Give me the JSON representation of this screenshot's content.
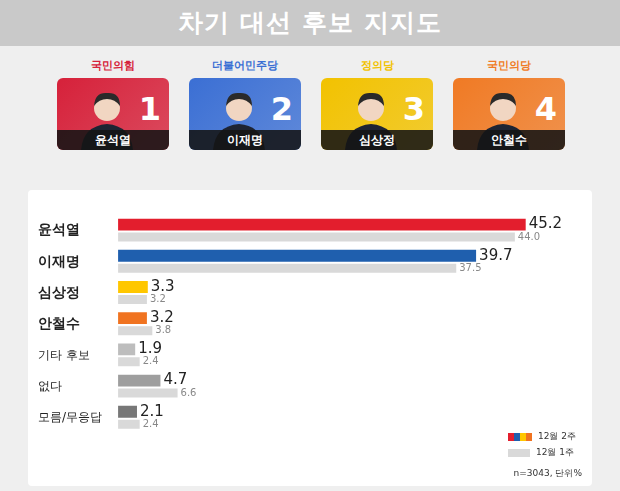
{
  "header": {
    "title": "차기 대선 후보 지지도",
    "candidates": [
      {
        "number": 1,
        "name": "윤석열",
        "party": "국민의힘",
        "color": "#d6213a"
      },
      {
        "number": 2,
        "name": "이재명",
        "party": "더불어민주당",
        "color": "#3b6fd4"
      },
      {
        "number": 3,
        "name": "심상정",
        "party": "정의당",
        "color": "#f2c200"
      },
      {
        "number": 4,
        "name": "안철수",
        "party": "국민의당",
        "color": "#f07a24"
      }
    ]
  },
  "chart_data": {
    "type": "bar",
    "orientation": "horizontal",
    "title": "차기 대선 후보 지지도",
    "categories": [
      "윤석열",
      "이재명",
      "심상정",
      "안철수",
      "기타 후보",
      "없다",
      "모름/무응답"
    ],
    "series": [
      {
        "name": "12월 2주",
        "colors": [
          "#e31e2d",
          "#1f5fae",
          "#ffc700",
          "#f07320",
          "#bdbdbd",
          "#9e9e9e",
          "#777777"
        ],
        "values": [
          45.2,
          39.7,
          3.3,
          3.2,
          1.9,
          4.7,
          2.1
        ]
      },
      {
        "name": "12월 1주",
        "color": "#d9d9d9",
        "values": [
          44,
          37.5,
          3.2,
          3.8,
          2.4,
          6.6,
          2.4
        ],
        "value_labels": [
          "44.0",
          "37.5",
          "3.2",
          "3.8",
          "2.4",
          "6.6",
          "2.4"
        ]
      }
    ],
    "data_labels": true,
    "tick_labels": "y",
    "grid": false,
    "legend": "lower right",
    "annotations": [
      "n=3043, 단위%"
    ]
  }
}
